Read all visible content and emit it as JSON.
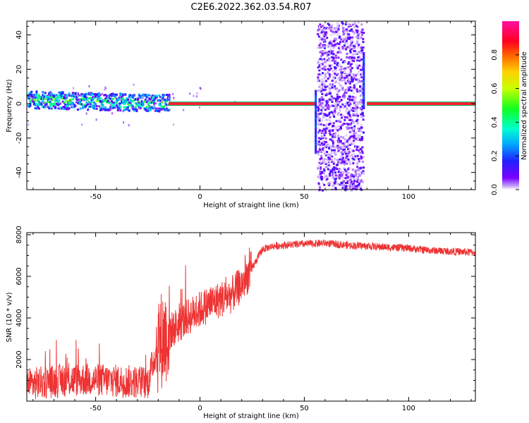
{
  "page_title": "C2E6.2022.362.03.54.R07",
  "chart_data": [
    {
      "type": "heatmap",
      "xlabel": "Height of straight line (km)",
      "ylabel": "Frequency (Hz)",
      "xlim": [
        -83,
        132
      ],
      "ylim": [
        -50,
        48
      ],
      "x_ticks": [
        -50,
        0,
        50,
        100
      ],
      "y_ticks": [
        -40,
        -20,
        0,
        20,
        40
      ],
      "grid": false,
      "colorbar": {
        "label": "Normalized spectral amplitude",
        "range": [
          0,
          1
        ],
        "ticks": [
          "0.0",
          "0.2",
          "0.4",
          "0.6",
          "0.8"
        ],
        "colormap": "rainbow (purple-blue-cyan-green-yellow-orange-red-magenta)"
      },
      "features": [
        {
          "description": "broad noisy spectrum near 0 Hz",
          "x_range": [
            -83,
            -15
          ],
          "freq_spread_hz": 6
        },
        {
          "description": "narrow carrier line at 0 Hz, normalized amplitude ~0.9",
          "x_range": [
            -15,
            55
          ]
        },
        {
          "description": "wideband noise column",
          "x_range": [
            56,
            78
          ],
          "freq_spread_hz": 50
        },
        {
          "description": "narrow carrier line at 0 Hz, normalized amplitude ~0.9",
          "x_range": [
            80,
            132
          ]
        }
      ]
    },
    {
      "type": "line",
      "xlabel": "Height of straight line (km)",
      "ylabel": "SNR (10 * v/v)",
      "xlim": [
        -83,
        132
      ],
      "ylim": [
        0,
        8100
      ],
      "x_ticks": [
        -50,
        0,
        50,
        100
      ],
      "y_ticks": [
        2000,
        4000,
        6000,
        8000
      ],
      "grid": false,
      "series": [
        {
          "color": "#ee3333",
          "x": [
            -83,
            -75,
            -65,
            -55,
            -45,
            -35,
            -25,
            -20,
            -15,
            -10,
            -5,
            0,
            5,
            10,
            15,
            20,
            25,
            30,
            35,
            40,
            50,
            60,
            70,
            80,
            90,
            100,
            110,
            120,
            132
          ],
          "y": [
            800,
            900,
            1000,
            1050,
            1000,
            950,
            900,
            2800,
            3300,
            3700,
            4100,
            4400,
            4700,
            4900,
            5100,
            5600,
            6400,
            7300,
            7450,
            7500,
            7550,
            7600,
            7500,
            7450,
            7400,
            7350,
            7250,
            7200,
            7150
          ],
          "noise": [
            {
              "x_range": [
                -83,
                -21
              ],
              "amplitude": 800
            },
            {
              "x_range": [
                -21,
                -14
              ],
              "amplitude": 2400
            },
            {
              "x_range": [
                -14,
                25
              ],
              "amplitude": 900
            },
            {
              "x_range": [
                25,
                132
              ],
              "amplitude": 180
            }
          ]
        }
      ]
    }
  ]
}
